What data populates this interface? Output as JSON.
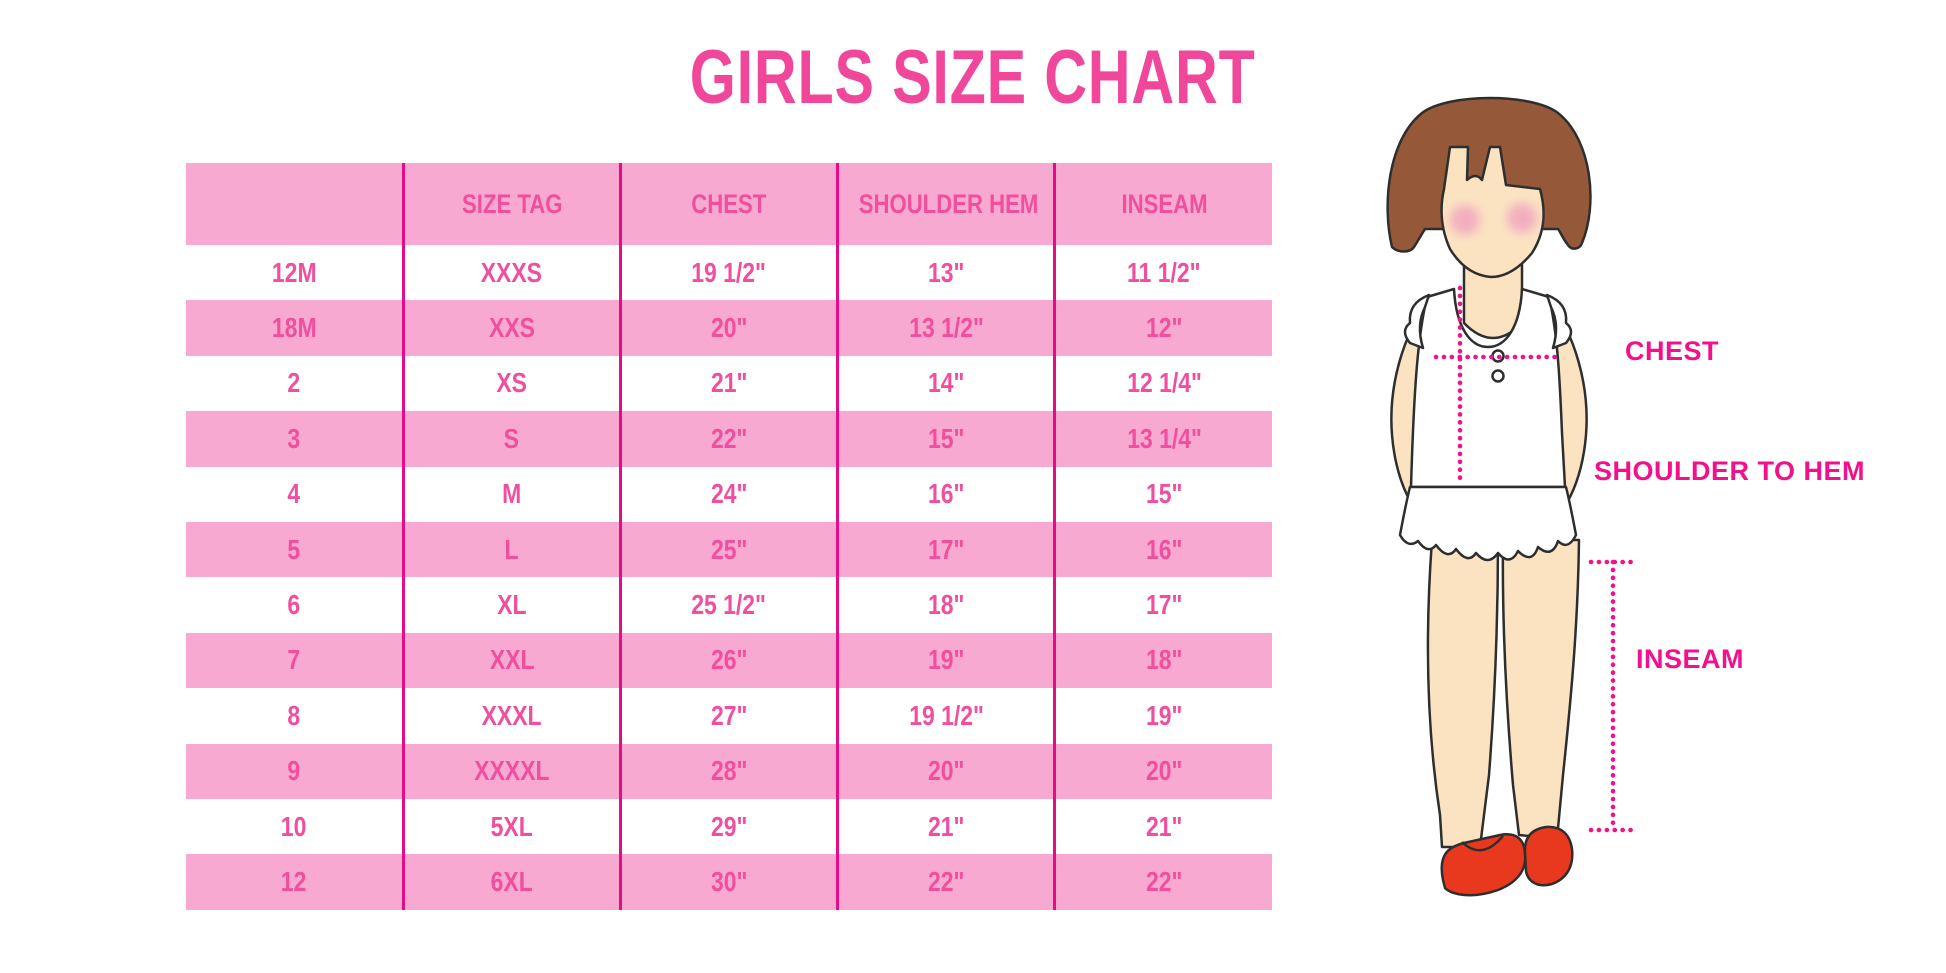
{
  "chart_data": {
    "type": "table",
    "title": "GIRLS SIZE CHART",
    "columns": [
      "",
      "SIZE TAG",
      "CHEST",
      "SHOULDER HEM",
      "INSEAM"
    ],
    "rows": [
      [
        "12M",
        "XXXS",
        "19 1/2\"",
        "13\"",
        "11 1/2\""
      ],
      [
        "18M",
        "XXS",
        "20\"",
        "13 1/2\"",
        "12\""
      ],
      [
        "2",
        "XS",
        "21\"",
        "14\"",
        "12 1/4\""
      ],
      [
        "3",
        "S",
        "22\"",
        "15\"",
        "13 1/4\""
      ],
      [
        "4",
        "M",
        "24\"",
        "16\"",
        "15\""
      ],
      [
        "5",
        "L",
        "25\"",
        "17\"",
        "16\""
      ],
      [
        "6",
        "XL",
        "25 1/2\"",
        "18\"",
        "17\""
      ],
      [
        "7",
        "XXL",
        "26\"",
        "19\"",
        "18\""
      ],
      [
        "8",
        "XXXL",
        "27\"",
        "19 1/2\"",
        "19\""
      ],
      [
        "9",
        "XXXXL",
        "28\"",
        "20\"",
        "20\""
      ],
      [
        "10",
        "5XL",
        "29\"",
        "21\"",
        "21\""
      ],
      [
        "12",
        "6XL",
        "30\"",
        "22\"",
        "22\""
      ]
    ],
    "row_striping": [
      "white",
      "pink"
    ],
    "grid": "column-dividers-only",
    "legend_position": "none"
  },
  "diagram": {
    "labels": {
      "chest": "CHEST",
      "shoulder_to_hem": "SHOULDER TO HEM",
      "inseam": "INSEAM"
    }
  },
  "colors": {
    "title_pink": "#f0479b",
    "text_pink": "#ef4f9e",
    "row_pink": "#f8a9d2",
    "divider_magenta": "#e60b86",
    "label_magenta": "#f2108c",
    "hair_brown": "#95593a",
    "skin": "#fbe3c2",
    "blush": "#efa3be",
    "shoe_red": "#e8391f",
    "outline": "#2e2e2e",
    "shirt_white": "#ffffff"
  }
}
